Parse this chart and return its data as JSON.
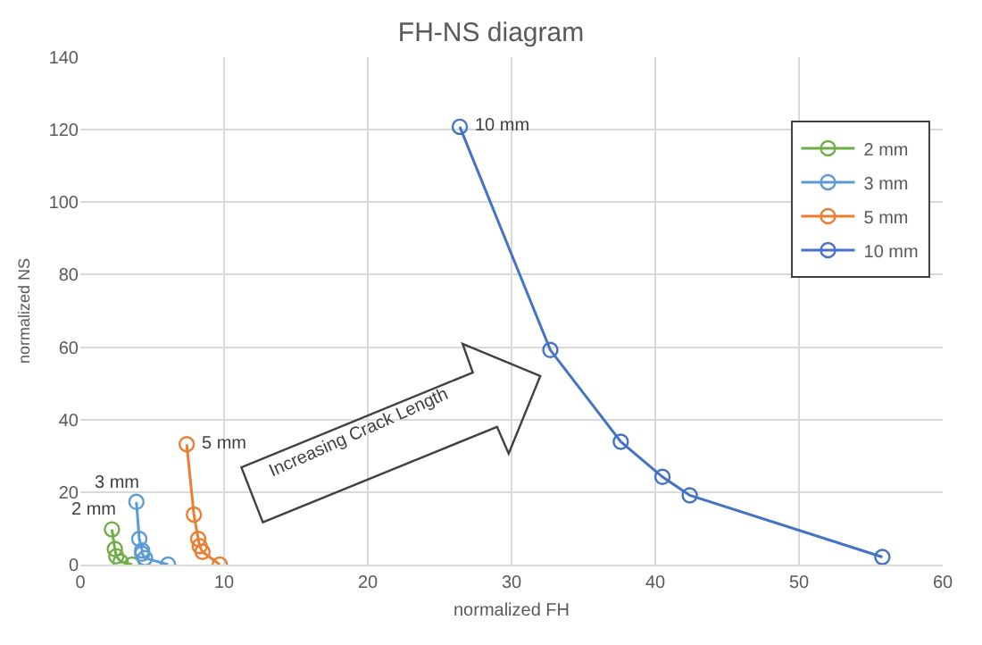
{
  "chart_data": {
    "type": "line",
    "title": "FH-NS diagram",
    "xlabel": "normalized FH",
    "ylabel": "normalized NS",
    "xlim": [
      0,
      60
    ],
    "xticks": [
      0,
      10,
      20,
      30,
      40,
      50,
      60
    ],
    "ylim": [
      0,
      140
    ],
    "yticks": [
      0,
      20,
      40,
      60,
      80,
      100,
      120,
      140
    ],
    "grid": true,
    "legend": "right",
    "marker": "circle",
    "line_style": "solid",
    "series": [
      {
        "name": "2 mm",
        "color": "#70ad47",
        "x": [
          2.2,
          2.4,
          2.5,
          2.8,
          3.6
        ],
        "values": [
          9.7,
          4.3,
          2.3,
          0.8,
          0
        ]
      },
      {
        "name": "3 mm",
        "color": "#5b9bd5",
        "x": [
          3.9,
          4.1,
          4.3,
          4.3,
          4.5,
          6.1
        ],
        "values": [
          17.3,
          7.1,
          3.9,
          3,
          1.8,
          0
        ]
      },
      {
        "name": "5 mm",
        "color": "#ed7d31",
        "x": [
          7.4,
          7.9,
          8.2,
          8.3,
          8.5,
          9.7
        ],
        "values": [
          33.2,
          13.8,
          7.1,
          5.1,
          3.5,
          0
        ]
      },
      {
        "name": "10 mm",
        "color": "#4472c4",
        "x": [
          26.4,
          32.7,
          37.6,
          40.5,
          42.4,
          55.8
        ],
        "values": [
          120.8,
          59.2,
          33.9,
          24.2,
          19.1,
          2.1
        ]
      }
    ],
    "annotations": [
      {
        "text": "2 mm",
        "x": 2.2,
        "y": 9.7
      },
      {
        "text": "3 mm",
        "x": 3.9,
        "y": 17.3
      },
      {
        "text": "5 mm",
        "x": 7.4,
        "y": 33.2
      },
      {
        "text": "10 mm",
        "x": 26.4,
        "y": 120.8
      },
      "Increasing Crack Length"
    ]
  }
}
